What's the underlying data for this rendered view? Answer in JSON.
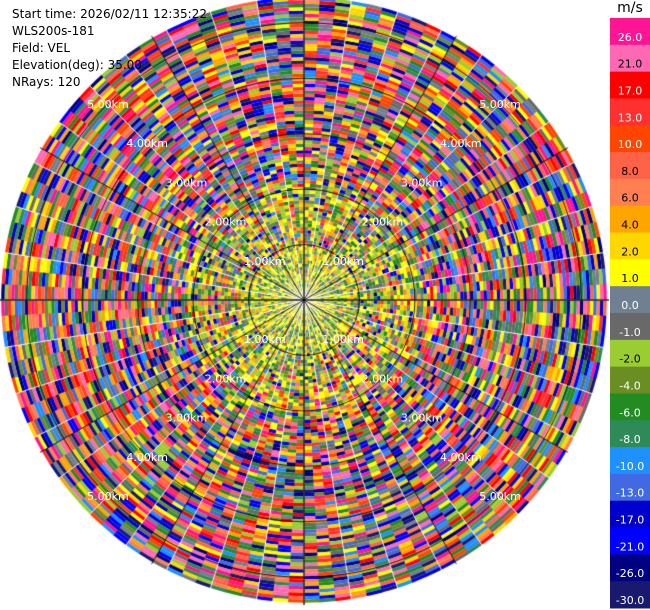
{
  "header": {
    "start_time": "Start time: 2026/02/11 12:35:22",
    "instrument": "WLS200s-181",
    "field": "Field: VEL",
    "elevation": "Elevation(deg): 35.00",
    "nrays": "NRays: 120"
  },
  "chart_data": {
    "type": "heatmap",
    "projection": "polar-ppi",
    "field": "VEL",
    "units": "m/s",
    "n_rays": 120,
    "elevation_deg": 35.0,
    "range_rings_km": [
      1,
      2,
      3,
      4,
      5
    ],
    "range_ring_labels": [
      "1.00km",
      "2.00km",
      "3.00km",
      "4.00km",
      "5.00km"
    ],
    "max_range_km": 5.5,
    "colorbar": {
      "label": "m/s",
      "ticks": [
        "26.0",
        "21.0",
        "17.0",
        "13.0",
        "10.0",
        "8.0",
        "6.0",
        "4.0",
        "2.0",
        "1.0",
        "0.0",
        "-1.0",
        "-2.0",
        "-4.0",
        "-6.0",
        "-8.0",
        "-10.0",
        "-13.0",
        "-17.0",
        "-21.0",
        "-26.0",
        "-30.0"
      ],
      "colors": [
        "#ff1493",
        "#ff69b4",
        "#ff0000",
        "#ff3030",
        "#ff4500",
        "#ff6347",
        "#ff7f50",
        "#ffa500",
        "#ffd700",
        "#ffff00",
        "#708090",
        "#696969",
        "#9acd32",
        "#6b8e23",
        "#228b22",
        "#2e8b57",
        "#1e90ff",
        "#4169e1",
        "#0000cd",
        "#0000ff",
        "#000080",
        "#191970"
      ]
    }
  }
}
